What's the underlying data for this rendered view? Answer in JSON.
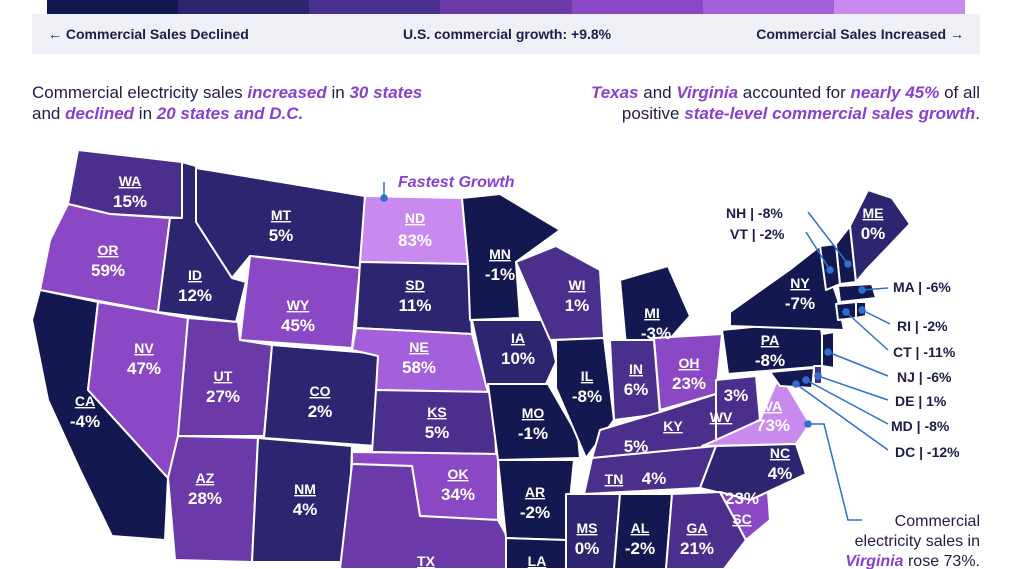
{
  "legend": {
    "colors": [
      "#141850",
      "#2d2570",
      "#4a2f8d",
      "#6b3aa8",
      "#8a48c4",
      "#a45fdb",
      "#c98af0"
    ],
    "left_label": "← Commercial Sales Declined",
    "center_label": "U.S. commercial growth: +9.8%",
    "right_label": "Commercial Sales Increased →"
  },
  "headline_left": {
    "p1": "Commercial electricity sales ",
    "e1": "increased",
    "p2": " in ",
    "e2": "30 states",
    "p3": " and ",
    "e3": "declined",
    "p4": " in ",
    "e4": "20 states and D.C."
  },
  "headline_right": {
    "e1": "Texas",
    "p1": " and ",
    "e2": "Virginia",
    "p2": " accounted for ",
    "e3": "nearly 45%",
    "p3": " of all",
    "p4": "positive ",
    "e4": "state-level commercial sales growth",
    "p5": "."
  },
  "fastest_label": "Fastest Growth",
  "states": {
    "WA": {
      "abbr": "WA",
      "value": "15%"
    },
    "OR": {
      "abbr": "OR",
      "value": "59%"
    },
    "CA": {
      "abbr": "CA",
      "value": "-4%"
    },
    "ID": {
      "abbr": "ID",
      "value": "12%"
    },
    "NV": {
      "abbr": "NV",
      "value": "47%"
    },
    "MT": {
      "abbr": "MT",
      "value": "5%"
    },
    "WY": {
      "abbr": "WY",
      "value": "45%"
    },
    "UT": {
      "abbr": "UT",
      "value": "27%"
    },
    "AZ": {
      "abbr": "AZ",
      "value": "28%"
    },
    "CO": {
      "abbr": "CO",
      "value": "2%"
    },
    "NM": {
      "abbr": "NM",
      "value": "4%"
    },
    "ND": {
      "abbr": "ND",
      "value": "83%"
    },
    "SD": {
      "abbr": "SD",
      "value": "11%"
    },
    "NE": {
      "abbr": "NE",
      "value": "58%"
    },
    "KS": {
      "abbr": "KS",
      "value": "5%"
    },
    "OK": {
      "abbr": "OK",
      "value": "34%"
    },
    "TX": {
      "abbr": "TX",
      "value": ""
    },
    "MN": {
      "abbr": "MN",
      "value": "-1%"
    },
    "IA": {
      "abbr": "IA",
      "value": "10%"
    },
    "MO": {
      "abbr": "MO",
      "value": "-1%"
    },
    "AR": {
      "abbr": "AR",
      "value": "-2%"
    },
    "LA": {
      "abbr": "LA",
      "value": ""
    },
    "WI": {
      "abbr": "WI",
      "value": "1%"
    },
    "IL": {
      "abbr": "IL",
      "value": "-8%"
    },
    "MI": {
      "abbr": "MI",
      "value": "-3%"
    },
    "IN": {
      "abbr": "IN",
      "value": "6%"
    },
    "OH": {
      "abbr": "OH",
      "value": "23%"
    },
    "KY": {
      "abbr": "KY",
      "value": "5%"
    },
    "TN": {
      "abbr": "TN",
      "value": "4%"
    },
    "MS": {
      "abbr": "MS",
      "value": "0%"
    },
    "AL": {
      "abbr": "AL",
      "value": "-2%"
    },
    "GA": {
      "abbr": "GA",
      "value": "21%"
    },
    "SC": {
      "abbr": "SC",
      "value": "23%"
    },
    "NC": {
      "abbr": "NC",
      "value": "4%"
    },
    "VA": {
      "abbr": "VA",
      "value": "73%"
    },
    "WV": {
      "abbr": "WV",
      "value": "3%"
    },
    "PA": {
      "abbr": "PA",
      "value": "-8%"
    },
    "NY": {
      "abbr": "NY",
      "value": "-7%"
    },
    "ME": {
      "abbr": "ME",
      "value": "0%"
    }
  },
  "callouts": {
    "NH": "NH | -8%",
    "VT": "VT | -2%",
    "MA": "MA | -6%",
    "RI": "RI | -2%",
    "CT": "CT | -11%",
    "NJ": "NJ | -6%",
    "DE": "DE | 1%",
    "MD": "MD | -8%",
    "DC": "DC | -12%"
  },
  "virginia_note": {
    "line1": "Commercial",
    "line2": "electricity sales in",
    "line3_em": "Virginia",
    "line3_rest": " rose 73%."
  }
}
